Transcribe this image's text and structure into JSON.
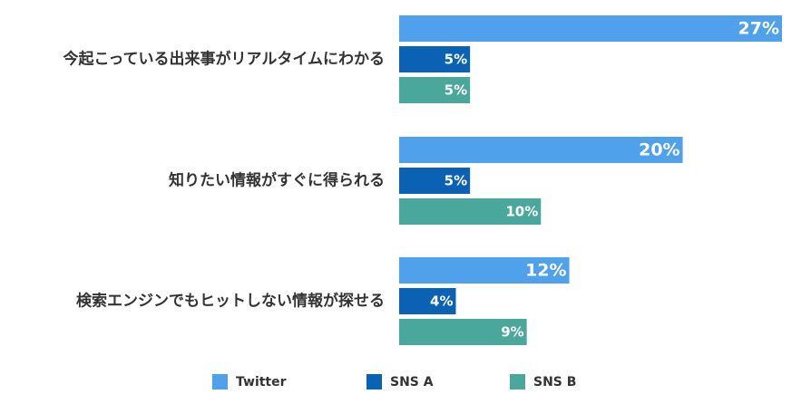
{
  "chart_data": {
    "type": "bar",
    "orientation": "horizontal",
    "categories": [
      "今起こっている出来事がリアルタイムにわかる",
      "知りたい情報がすぐに得られる",
      "検索エンジンでもヒットしない情報が探せる"
    ],
    "series": [
      {
        "name": "Twitter",
        "color": "#4ea1ea",
        "values": [
          27,
          20,
          12
        ],
        "labels": [
          "27%",
          "20%",
          "12%"
        ]
      },
      {
        "name": "SNS A",
        "color": "#0b62b4",
        "values": [
          5,
          5,
          4
        ],
        "labels": [
          "5%",
          "5%",
          "4%"
        ]
      },
      {
        "name": "SNS B",
        "color": "#4aa79c",
        "values": [
          5,
          10,
          9
        ],
        "labels": [
          "5%",
          "10%",
          "9%"
        ]
      }
    ],
    "xlim": [
      0,
      27
    ],
    "grid": false,
    "legend_position": "bottom"
  }
}
